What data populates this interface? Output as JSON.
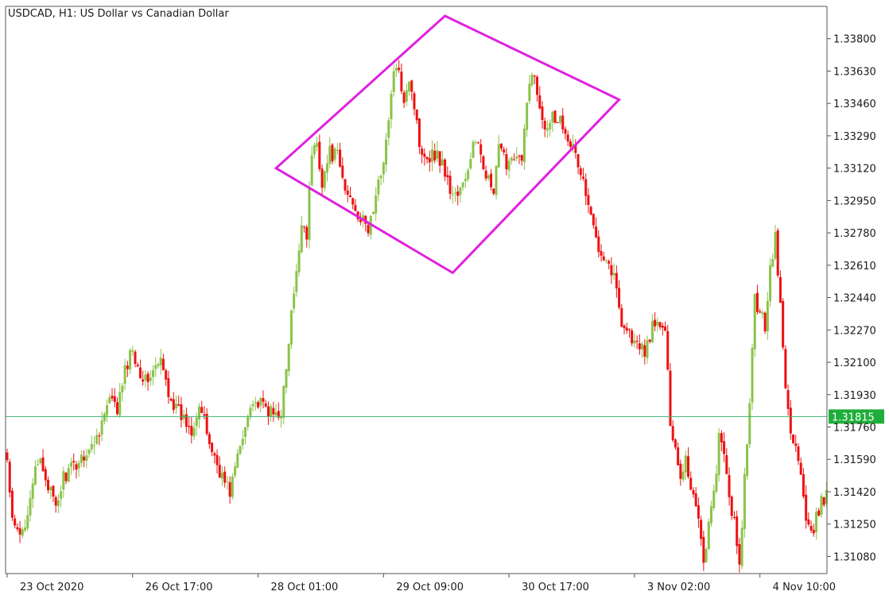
{
  "chart_data": {
    "type": "candlestick",
    "title": "USDCAD, H1:  US Dollar vs Canadian Dollar",
    "symbol": "USDCAD",
    "timeframe": "H1",
    "colors": {
      "up": "#8bc34a",
      "down": "#ee1111",
      "pattern": "#e020e0",
      "price_line": "#3cb371",
      "axis": "#555555"
    },
    "ylim": [
      1.3099,
      1.3397
    ],
    "y_ticks": [
      "1.33800",
      "1.33630",
      "1.33460",
      "1.33290",
      "1.33120",
      "1.32950",
      "1.32780",
      "1.32610",
      "1.32440",
      "1.32270",
      "1.32100",
      "1.31930",
      "1.31760",
      "1.31590",
      "1.31420",
      "1.31250",
      "1.31080"
    ],
    "x_ticks": [
      {
        "label": "23 Oct 2020",
        "index": 0
      },
      {
        "label": "26 Oct 17:00",
        "index": 49
      },
      {
        "label": "28 Oct 01:00",
        "index": 98
      },
      {
        "label": "29 Oct 09:00",
        "index": 147
      },
      {
        "label": "30 Oct 17:00",
        "index": 196
      },
      {
        "label": "3 Nov 02:00",
        "index": 245
      },
      {
        "label": "4 Nov 10:00",
        "index": 294
      }
    ],
    "current_price": "1.31815",
    "pattern": {
      "name": "diamond",
      "points": [
        {
          "index": 105,
          "price": 1.3312
        },
        {
          "index": 171,
          "price": 1.3392
        },
        {
          "index": 239,
          "price": 1.3348
        },
        {
          "index": 174,
          "price": 1.3257
        }
      ]
    },
    "waypoints": [
      [
        0,
        1.3158
      ],
      [
        2,
        1.3125
      ],
      [
        5,
        1.3118
      ],
      [
        7,
        1.3126
      ],
      [
        10,
        1.3148
      ],
      [
        13,
        1.3158
      ],
      [
        16,
        1.3146
      ],
      [
        19,
        1.3132
      ],
      [
        22,
        1.315
      ],
      [
        26,
        1.3155
      ],
      [
        30,
        1.3162
      ],
      [
        33,
        1.3165
      ],
      [
        36,
        1.3175
      ],
      [
        40,
        1.319
      ],
      [
        43,
        1.3185
      ],
      [
        46,
        1.3205
      ],
      [
        49,
        1.3218
      ],
      [
        51,
        1.3208
      ],
      [
        54,
        1.32
      ],
      [
        57,
        1.3205
      ],
      [
        60,
        1.321
      ],
      [
        63,
        1.3195
      ],
      [
        66,
        1.3185
      ],
      [
        69,
        1.318
      ],
      [
        72,
        1.3175
      ],
      [
        75,
        1.3188
      ],
      [
        77,
        1.3178
      ],
      [
        79,
        1.3168
      ],
      [
        81,
        1.316
      ],
      [
        84,
        1.315
      ],
      [
        87,
        1.3142
      ],
      [
        89,
        1.3155
      ],
      [
        92,
        1.317
      ],
      [
        95,
        1.319
      ],
      [
        98,
        1.3188
      ],
      [
        101,
        1.3186
      ],
      [
        104,
        1.3182
      ],
      [
        107,
        1.3185
      ],
      [
        109,
        1.3205
      ],
      [
        111,
        1.3235
      ],
      [
        113,
        1.3255
      ],
      [
        115,
        1.3285
      ],
      [
        117,
        1.3278
      ],
      [
        119,
        1.332
      ],
      [
        121,
        1.3325
      ],
      [
        123,
        1.3305
      ],
      [
        126,
        1.332
      ],
      [
        129,
        1.3318
      ],
      [
        132,
        1.33
      ],
      [
        135,
        1.3295
      ],
      [
        138,
        1.3285
      ],
      [
        141,
        1.328
      ],
      [
        144,
        1.3296
      ],
      [
        146,
        1.331
      ],
      [
        149,
        1.3335
      ],
      [
        151,
        1.3365
      ],
      [
        153,
        1.336
      ],
      [
        155,
        1.335
      ],
      [
        157,
        1.336
      ],
      [
        159,
        1.3345
      ],
      [
        161,
        1.3325
      ],
      [
        164,
        1.3318
      ],
      [
        167,
        1.332
      ],
      [
        170,
        1.3315
      ],
      [
        173,
        1.33
      ],
      [
        176,
        1.3298
      ],
      [
        179,
        1.3305
      ],
      [
        182,
        1.3325
      ],
      [
        185,
        1.332
      ],
      [
        188,
        1.3305
      ],
      [
        190,
        1.3298
      ],
      [
        192,
        1.3322
      ],
      [
        195,
        1.3315
      ],
      [
        198,
        1.332
      ],
      [
        201,
        1.3315
      ],
      [
        203,
        1.3345
      ],
      [
        205,
        1.3365
      ],
      [
        207,
        1.335
      ],
      [
        210,
        1.3335
      ],
      [
        213,
        1.334
      ],
      [
        216,
        1.3338
      ],
      [
        219,
        1.333
      ],
      [
        222,
        1.3318
      ],
      [
        225,
        1.3305
      ],
      [
        228,
        1.3285
      ],
      [
        231,
        1.3272
      ],
      [
        234,
        1.3265
      ],
      [
        237,
        1.3255
      ],
      [
        240,
        1.3232
      ],
      [
        243,
        1.3225
      ],
      [
        246,
        1.3218
      ],
      [
        249,
        1.3216
      ],
      [
        252,
        1.3228
      ],
      [
        255,
        1.323
      ],
      [
        257,
        1.3225
      ],
      [
        259,
        1.318
      ],
      [
        261,
        1.3165
      ],
      [
        263,
        1.315
      ],
      [
        265,
        1.316
      ],
      [
        267,
        1.3145
      ],
      [
        270,
        1.313
      ],
      [
        272,
        1.3105
      ],
      [
        274,
        1.3125
      ],
      [
        276,
        1.314
      ],
      [
        278,
        1.317
      ],
      [
        280,
        1.316
      ],
      [
        282,
        1.314
      ],
      [
        284,
        1.3125
      ],
      [
        286,
        1.31
      ],
      [
        288,
        1.315
      ],
      [
        290,
        1.3185
      ],
      [
        292,
        1.3245
      ],
      [
        294,
        1.3235
      ],
      [
        296,
        1.323
      ],
      [
        298,
        1.326
      ],
      [
        300,
        1.3275
      ],
      [
        302,
        1.324
      ],
      [
        304,
        1.3195
      ],
      [
        306,
        1.3175
      ],
      [
        308,
        1.3165
      ],
      [
        310,
        1.315
      ],
      [
        312,
        1.3125
      ],
      [
        314,
        1.3118
      ],
      [
        316,
        1.3128
      ],
      [
        318,
        1.3136
      ],
      [
        320,
        1.314
      ]
    ],
    "n_bars": 321
  }
}
